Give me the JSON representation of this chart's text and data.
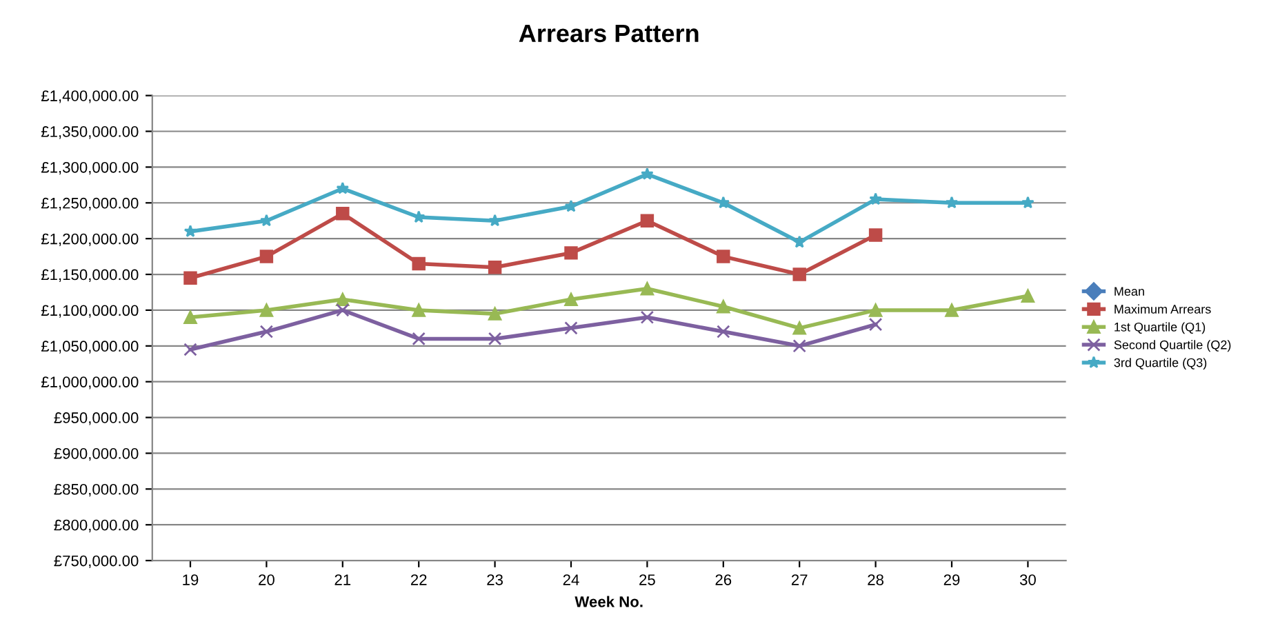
{
  "chart_data": {
    "type": "line",
    "title": "Arrears Pattern",
    "xlabel": "Week No.",
    "categories": [
      "19",
      "20",
      "21",
      "22",
      "23",
      "24",
      "25",
      "26",
      "27",
      "28",
      "29",
      "30"
    ],
    "series": [
      {
        "name": "Mean",
        "color": "#4a7ebb",
        "marker": "diamond",
        "values": [
          null,
          null,
          null,
          null,
          null,
          null,
          null,
          null,
          null,
          null,
          null,
          null
        ]
      },
      {
        "name": "Maximum Arrears",
        "color": "#be4b48",
        "marker": "square",
        "values": [
          1145000,
          1175000,
          1235000,
          1165000,
          1160000,
          1180000,
          1225000,
          1175000,
          1150000,
          1205000,
          null,
          null
        ]
      },
      {
        "name": "1st Quartile (Q1)",
        "color": "#98b954",
        "marker": "triangle",
        "values": [
          1090000,
          1100000,
          1115000,
          1100000,
          1095000,
          1115000,
          1130000,
          1105000,
          1075000,
          1100000,
          1100000,
          1120000
        ]
      },
      {
        "name": "Second Quartile (Q2)",
        "color": "#7d60a0",
        "marker": "cross",
        "values": [
          1045000,
          1070000,
          1100000,
          1060000,
          1060000,
          1075000,
          1090000,
          1070000,
          1050000,
          1080000,
          null,
          null
        ]
      },
      {
        "name": "3rd Quartile (Q3)",
        "color": "#46aac5",
        "marker": "star",
        "values": [
          1210000,
          1225000,
          1270000,
          1230000,
          1225000,
          1245000,
          1290000,
          1250000,
          1195000,
          1255000,
          1250000,
          1250000
        ]
      }
    ],
    "ylim": [
      750000,
      1400000
    ],
    "yticks": [
      {
        "value": 750000,
        "label": "£750,000.00"
      },
      {
        "value": 800000,
        "label": "£800,000.00"
      },
      {
        "value": 850000,
        "label": "£850,000.00"
      },
      {
        "value": 900000,
        "label": "£900,000.00"
      },
      {
        "value": 950000,
        "label": "£950,000.00"
      },
      {
        "value": 1000000,
        "label": "£1,000,000.00"
      },
      {
        "value": 1050000,
        "label": "£1,050,000.00"
      },
      {
        "value": 1100000,
        "label": "£1,100,000.00"
      },
      {
        "value": 1150000,
        "label": "£1,150,000.00"
      },
      {
        "value": 1200000,
        "label": "£1,200,000.00"
      },
      {
        "value": 1250000,
        "label": "£1,250,000.00"
      },
      {
        "value": 1300000,
        "label": "£1,300,000.00"
      },
      {
        "value": 1350000,
        "label": "£1,350,000.00"
      },
      {
        "value": 1400000,
        "label": "£1,400,000.00"
      }
    ],
    "grid": "y",
    "legend": "right",
    "line_style": "solid"
  }
}
